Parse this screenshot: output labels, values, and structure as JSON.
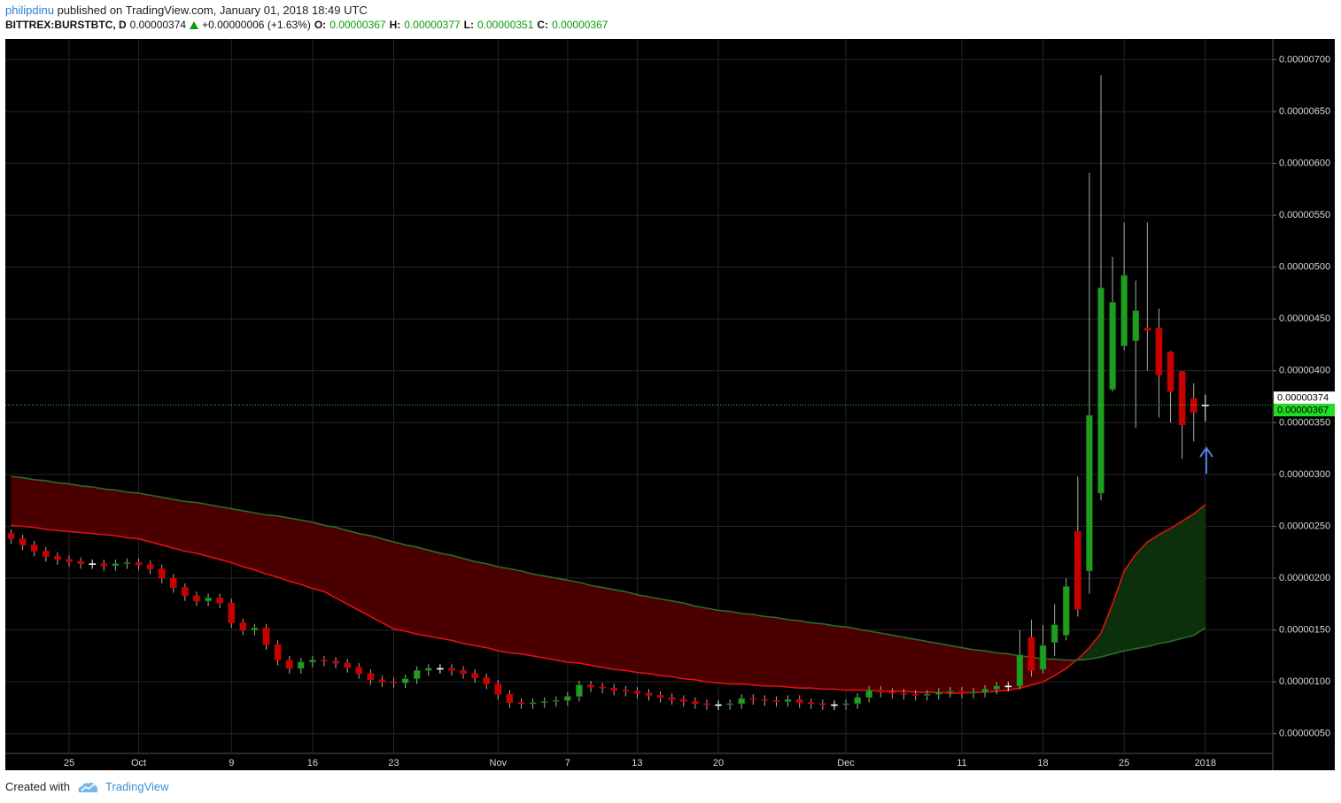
{
  "header": {
    "author": "philipdinu",
    "published": "published on TradingView.com, January 01, 2018 18:49 UTC",
    "symbol": "BITTREX:BURSTBTC, D",
    "price": "0.00000374",
    "change": "+0.00000006 (+1.63%)",
    "o_label": "O:",
    "o": "0.00000367",
    "h_label": "H:",
    "h": "0.00000377",
    "l_label": "L:",
    "l": "0.00000351",
    "c_label": "C:",
    "c": "0.00000367"
  },
  "footer": {
    "created": "Created with",
    "brand": "TradingView"
  },
  "chart_data": {
    "type": "candlestick",
    "categories": [
      null,
      null,
      null,
      null,
      null,
      "25",
      null,
      null,
      null,
      null,
      null,
      "Oct",
      null,
      null,
      null,
      null,
      null,
      null,
      null,
      "9",
      null,
      null,
      null,
      null,
      null,
      null,
      "16",
      null,
      null,
      null,
      null,
      null,
      null,
      "23",
      null,
      null,
      null,
      null,
      null,
      null,
      null,
      null,
      "Nov",
      null,
      null,
      null,
      null,
      null,
      "7",
      null,
      null,
      null,
      null,
      null,
      "13",
      null,
      null,
      null,
      null,
      null,
      null,
      "20",
      null,
      null,
      null,
      null,
      null,
      null,
      null,
      null,
      null,
      null,
      "Dec",
      null,
      null,
      null,
      null,
      null,
      null,
      null,
      null,
      null,
      "11",
      null,
      null,
      null,
      null,
      null,
      null,
      "18",
      null,
      null,
      null,
      null,
      null,
      null,
      "25",
      null,
      null,
      null,
      null,
      null,
      null,
      "2018"
    ],
    "open": [
      2.43e-06,
      2.38e-06,
      2.32e-06,
      2.26e-06,
      2.21e-06,
      2.18e-06,
      2.16e-06,
      2.14e-06,
      2.14e-06,
      2.12e-06,
      2.14e-06,
      2.15e-06,
      2.13e-06,
      2.09e-06,
      2e-06,
      1.91e-06,
      1.83e-06,
      1.78e-06,
      1.81e-06,
      1.76e-06,
      1.57e-06,
      1.5e-06,
      1.52e-06,
      1.36e-06,
      1.21e-06,
      1.13e-06,
      1.19e-06,
      1.21e-06,
      1.2e-06,
      1.18e-06,
      1.14e-06,
      1.08e-06,
      1.02e-06,
      1e-06,
      9.9e-07,
      1.03e-06,
      1.11e-06,
      1.13e-06,
      1.13e-06,
      1.11e-06,
      1.08e-06,
      1.04e-06,
      9.8e-07,
      8.8e-07,
      8e-07,
      7.9e-07,
      8e-07,
      8.1e-07,
      8.2e-07,
      8.6e-07,
      9.7e-07,
      9.5e-07,
      9.4e-07,
      9.2e-07,
      9.1e-07,
      8.9e-07,
      8.7e-07,
      8.5e-07,
      8.3e-07,
      8.1e-07,
      7.9e-07,
      7.8e-07,
      7.8e-07,
      7.9e-07,
      8.4e-07,
      8.3e-07,
      8.2e-07,
      8.1e-07,
      8.3e-07,
      8e-07,
      7.9e-07,
      7.8e-07,
      7.8e-07,
      7.9e-07,
      8.5e-07,
      9.2e-07,
      9e-07,
      8.9e-07,
      8.8e-07,
      8.7e-07,
      8.8e-07,
      9e-07,
      9.1e-07,
      8.9e-07,
      9e-07,
      9.3e-07,
      9.6e-07,
      9.6e-07,
      1.43e-06,
      1.12e-06,
      1.38e-06,
      1.45e-06,
      2.45e-06,
      2.07e-06,
      2.82e-06,
      3.82e-06,
      4.24e-06,
      4.29e-06,
      4.41e-06,
      4.41e-06,
      4.18e-06,
      3.99e-06,
      3.73e-06,
      3.67e-06
    ],
    "high": [
      2.47e-06,
      2.42e-06,
      2.36e-06,
      2.3e-06,
      2.25e-06,
      2.22e-06,
      2.2e-06,
      2.18e-06,
      2.18e-06,
      2.18e-06,
      2.19e-06,
      2.19e-06,
      2.17e-06,
      2.13e-06,
      2.04e-06,
      1.95e-06,
      1.87e-06,
      1.85e-06,
      1.85e-06,
      1.8e-06,
      1.61e-06,
      1.56e-06,
      1.56e-06,
      1.4e-06,
      1.25e-06,
      1.23e-06,
      1.25e-06,
      1.25e-06,
      1.24e-06,
      1.22e-06,
      1.18e-06,
      1.12e-06,
      1.06e-06,
      1.04e-06,
      1.07e-06,
      1.15e-06,
      1.17e-06,
      1.17e-06,
      1.17e-06,
      1.15e-06,
      1.12e-06,
      1.08e-06,
      1.02e-06,
      9.2e-07,
      8.4e-07,
      8.4e-07,
      8.5e-07,
      8.6e-07,
      9e-07,
      1.01e-06,
      1.01e-06,
      9.9e-07,
      9.8e-07,
      9.6e-07,
      9.5e-07,
      9.3e-07,
      9.1e-07,
      8.9e-07,
      8.7e-07,
      8.5e-07,
      8.3e-07,
      8.2e-07,
      8.3e-07,
      8.8e-07,
      8.8e-07,
      8.7e-07,
      8.6e-07,
      8.7e-07,
      8.7e-07,
      8.4e-07,
      8.3e-07,
      8.2e-07,
      8.3e-07,
      8.9e-07,
      9.6e-07,
      9.6e-07,
      9.4e-07,
      9.3e-07,
      9.2e-07,
      9.2e-07,
      9.4e-07,
      9.5e-07,
      9.5e-07,
      9.4e-07,
      9.7e-07,
      1e-06,
      1e-06,
      1.5e-06,
      1.6e-06,
      1.55e-06,
      1.75e-06,
      2e-06,
      2.98e-06,
      5.91e-06,
      6.85e-06,
      5.1e-06,
      5.43e-06,
      4.87e-06,
      5.43e-06,
      4.6e-06,
      4.19e-06,
      4e-06,
      3.88e-06,
      3.77e-06
    ],
    "low": [
      2.33e-06,
      2.27e-06,
      2.21e-06,
      2.16e-06,
      2.13e-06,
      2.11e-06,
      2.09e-06,
      2.09e-06,
      2.07e-06,
      2.07e-06,
      2.09e-06,
      2.08e-06,
      2.04e-06,
      1.95e-06,
      1.86e-06,
      1.78e-06,
      1.73e-06,
      1.73e-06,
      1.71e-06,
      1.52e-06,
      1.45e-06,
      1.45e-06,
      1.31e-06,
      1.16e-06,
      1.08e-06,
      1.08e-06,
      1.14e-06,
      1.15e-06,
      1.13e-06,
      1.09e-06,
      1.03e-06,
      9.7e-07,
      9.5e-07,
      9.4e-07,
      9.4e-07,
      9.8e-07,
      1.06e-06,
      1.08e-06,
      1.06e-06,
      1.03e-06,
      9.9e-07,
      9.3e-07,
      8.3e-07,
      7.5e-07,
      7.4e-07,
      7.4e-07,
      7.5e-07,
      7.6e-07,
      7.7e-07,
      8.1e-07,
      9e-07,
      8.9e-07,
      8.7e-07,
      8.6e-07,
      8.4e-07,
      8.2e-07,
      8e-07,
      7.8e-07,
      7.6e-07,
      7.4e-07,
      7.3e-07,
      7.3e-07,
      7.3e-07,
      7.4e-07,
      7.8e-07,
      7.7e-07,
      7.6e-07,
      7.6e-07,
      7.5e-07,
      7.4e-07,
      7.3e-07,
      7.3e-07,
      7.3e-07,
      7.4e-07,
      8e-07,
      8.5e-07,
      8.4e-07,
      8.3e-07,
      8.2e-07,
      8.2e-07,
      8.3e-07,
      8.5e-07,
      8.4e-07,
      8.4e-07,
      8.5e-07,
      8.8e-07,
      9.1e-07,
      9.3e-07,
      1.05e-06,
      1.08e-06,
      1.25e-06,
      1.4e-06,
      1.63e-06,
      1.85e-06,
      2.75e-06,
      3.8e-06,
      4.2e-06,
      3.45e-06,
      4e-06,
      3.55e-06,
      3.5e-06,
      3.15e-06,
      3.32e-06,
      3.51e-06
    ],
    "close": [
      2.38e-06,
      2.32e-06,
      2.26e-06,
      2.21e-06,
      2.18e-06,
      2.16e-06,
      2.14e-06,
      2.14e-06,
      2.12e-06,
      2.14e-06,
      2.15e-06,
      2.13e-06,
      2.09e-06,
      2e-06,
      1.91e-06,
      1.83e-06,
      1.78e-06,
      1.81e-06,
      1.76e-06,
      1.57e-06,
      1.5e-06,
      1.52e-06,
      1.36e-06,
      1.21e-06,
      1.13e-06,
      1.19e-06,
      1.21e-06,
      1.2e-06,
      1.18e-06,
      1.14e-06,
      1.08e-06,
      1.02e-06,
      1e-06,
      9.9e-07,
      1.03e-06,
      1.11e-06,
      1.13e-06,
      1.13e-06,
      1.11e-06,
      1.08e-06,
      1.04e-06,
      9.8e-07,
      8.8e-07,
      8e-07,
      7.9e-07,
      8e-07,
      8.1e-07,
      8.2e-07,
      8.6e-07,
      9.7e-07,
      9.5e-07,
      9.4e-07,
      9.2e-07,
      9.1e-07,
      8.9e-07,
      8.7e-07,
      8.5e-07,
      8.3e-07,
      8.1e-07,
      7.9e-07,
      7.8e-07,
      7.8e-07,
      7.9e-07,
      8.4e-07,
      8.3e-07,
      8.2e-07,
      8.1e-07,
      8.3e-07,
      8e-07,
      7.9e-07,
      7.8e-07,
      7.8e-07,
      7.9e-07,
      8.5e-07,
      9.2e-07,
      9e-07,
      8.9e-07,
      8.8e-07,
      8.7e-07,
      8.8e-07,
      9e-07,
      9.1e-07,
      8.9e-07,
      9e-07,
      9.3e-07,
      9.6e-07,
      9.6e-07,
      1.26e-06,
      1.11e-06,
      1.35e-06,
      1.55e-06,
      1.92e-06,
      1.7e-06,
      3.57e-06,
      4.8e-06,
      4.66e-06,
      4.92e-06,
      4.58e-06,
      4.39e-06,
      3.96e-06,
      3.8e-06,
      3.48e-06,
      3.6e-06,
      3.67e-06
    ],
    "up_color": "#1e9e1e",
    "down_color": "#c80000",
    "flat_color": "#ffffff",
    "lines": [
      {
        "color": "#e01010",
        "values": [
          2.51e-06,
          2.5e-06,
          2.49e-06,
          2.47e-06,
          2.46e-06,
          2.45e-06,
          2.44e-06,
          2.43e-06,
          2.42e-06,
          2.41e-06,
          2.39e-06,
          2.38e-06,
          2.35e-06,
          2.32e-06,
          2.29e-06,
          2.26e-06,
          2.24e-06,
          2.21e-06,
          2.18e-06,
          2.15e-06,
          2.11e-06,
          2.08e-06,
          2.04e-06,
          2.01e-06,
          1.97e-06,
          1.94e-06,
          1.9e-06,
          1.87e-06,
          1.81e-06,
          1.75e-06,
          1.69e-06,
          1.63e-06,
          1.57e-06,
          1.51e-06,
          1.49e-06,
          1.46e-06,
          1.44e-06,
          1.42e-06,
          1.4e-06,
          1.37e-06,
          1.35e-06,
          1.33e-06,
          1.3e-06,
          1.28e-06,
          1.27e-06,
          1.25e-06,
          1.23e-06,
          1.21e-06,
          1.19e-06,
          1.18e-06,
          1.16e-06,
          1.14e-06,
          1.12e-06,
          1.11e-06,
          1.09e-06,
          1.08e-06,
          1.06e-06,
          1.05e-06,
          1.03e-06,
          1.02e-06,
          1e-06,
          9.9e-07,
          9.8e-07,
          9.8e-07,
          9.7e-07,
          9.6e-07,
          9.6e-07,
          9.5e-07,
          9.4e-07,
          9.4e-07,
          9.3e-07,
          9.3e-07,
          9.2e-07,
          9.2e-07,
          9.2e-07,
          9.1e-07,
          9.1e-07,
          9.1e-07,
          9e-07,
          9e-07,
          9e-07,
          8.9e-07,
          8.9e-07,
          9e-07,
          9e-07,
          9.1e-07,
          9.2e-07,
          9.4e-07,
          9.7e-07,
          1e-06,
          1.06e-06,
          1.13e-06,
          1.22e-06,
          1.33e-06,
          1.47e-06,
          1.75e-06,
          2.07e-06,
          2.23e-06,
          2.35e-06,
          2.42e-06,
          2.48e-06,
          2.55e-06,
          2.62e-06,
          2.71e-06
        ]
      },
      {
        "color": "#2b6b2b",
        "values": [
          2.98e-06,
          2.97e-06,
          2.95e-06,
          2.94e-06,
          2.92e-06,
          2.91e-06,
          2.89e-06,
          2.88e-06,
          2.86e-06,
          2.85e-06,
          2.83e-06,
          2.82e-06,
          2.8e-06,
          2.78e-06,
          2.76e-06,
          2.74e-06,
          2.73e-06,
          2.71e-06,
          2.69e-06,
          2.67e-06,
          2.65e-06,
          2.63e-06,
          2.61e-06,
          2.6e-06,
          2.58e-06,
          2.56e-06,
          2.54e-06,
          2.51e-06,
          2.49e-06,
          2.46e-06,
          2.43e-06,
          2.41e-06,
          2.38e-06,
          2.35e-06,
          2.32e-06,
          2.3e-06,
          2.27e-06,
          2.24e-06,
          2.22e-06,
          2.19e-06,
          2.16e-06,
          2.14e-06,
          2.11e-06,
          2.09e-06,
          2.07e-06,
          2.04e-06,
          2.02e-06,
          2e-06,
          1.98e-06,
          1.96e-06,
          1.93e-06,
          1.91e-06,
          1.89e-06,
          1.87e-06,
          1.84e-06,
          1.82e-06,
          1.8e-06,
          1.78e-06,
          1.76e-06,
          1.73e-06,
          1.71e-06,
          1.69e-06,
          1.68e-06,
          1.66e-06,
          1.65e-06,
          1.63e-06,
          1.62e-06,
          1.6e-06,
          1.59e-06,
          1.57e-06,
          1.56e-06,
          1.54e-06,
          1.53e-06,
          1.51e-06,
          1.49e-06,
          1.47e-06,
          1.45e-06,
          1.43e-06,
          1.41e-06,
          1.39e-06,
          1.37e-06,
          1.35e-06,
          1.33e-06,
          1.31e-06,
          1.3e-06,
          1.28e-06,
          1.27e-06,
          1.25e-06,
          1.24e-06,
          1.22e-06,
          1.22e-06,
          1.21e-06,
          1.21e-06,
          1.22e-06,
          1.24e-06,
          1.27e-06,
          1.3e-06,
          1.32e-06,
          1.34e-06,
          1.37e-06,
          1.39e-06,
          1.42e-06,
          1.45e-06,
          1.52e-06
        ]
      }
    ],
    "cloud_colors": [
      "#4a0000",
      "#0b300b"
    ],
    "price_markers": [
      {
        "value": 3.74e-06,
        "label": "0.00000374",
        "color": "#ffffff"
      },
      {
        "value": 3.67e-06,
        "label": "0.00000367",
        "color": "#22dd22"
      }
    ],
    "ylim": [
      3.1e-07,
      7.2e-06
    ],
    "yticks": [
      {
        "value": 5e-07,
        "label": "0.00000050"
      },
      {
        "value": 1e-06,
        "label": "0.00000100"
      },
      {
        "value": 1.5e-06,
        "label": "0.00000150"
      },
      {
        "value": 2e-06,
        "label": "0.00000200"
      },
      {
        "value": 2.5e-06,
        "label": "0.00000250"
      },
      {
        "value": 3e-06,
        "label": "0.00000300"
      },
      {
        "value": 3.5e-06,
        "label": "0.00000350"
      },
      {
        "value": 4e-06,
        "label": "0.00000400"
      },
      {
        "value": 4.5e-06,
        "label": "0.00000450"
      },
      {
        "value": 5e-06,
        "label": "0.00000500"
      },
      {
        "value": 5.5e-06,
        "label": "0.00000550"
      },
      {
        "value": 6e-06,
        "label": "0.00000600"
      },
      {
        "value": 6.5e-06,
        "label": "0.00000650"
      },
      {
        "value": 7e-06,
        "label": "0.00000700"
      }
    ],
    "grid": true
  }
}
